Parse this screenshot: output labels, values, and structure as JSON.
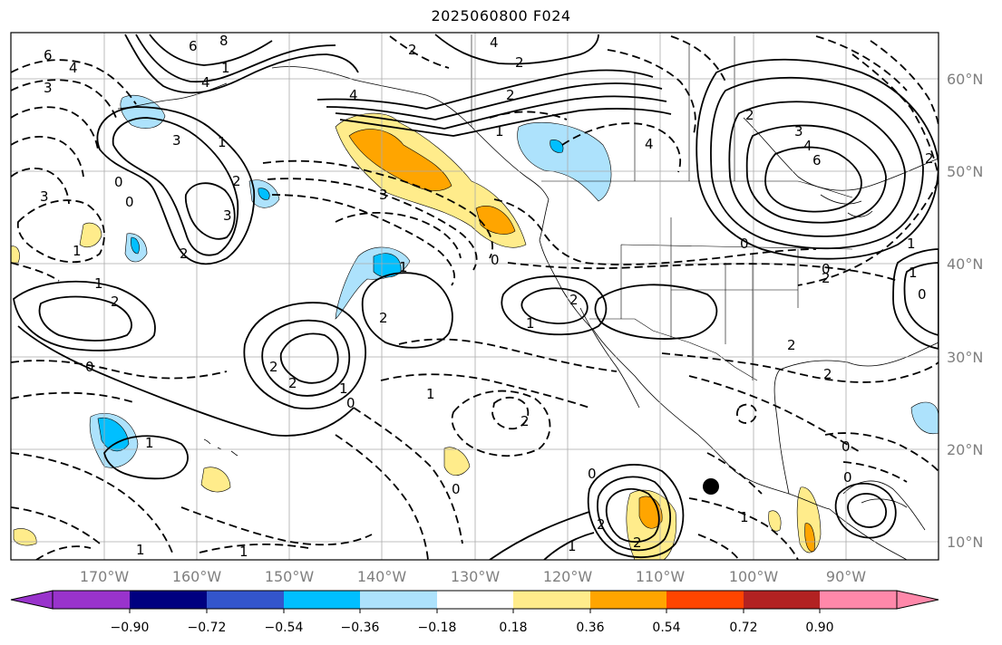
{
  "title": "2025060800 F024",
  "map": {
    "lon_range": [
      -180,
      -80
    ],
    "lat_range": [
      8,
      65
    ],
    "grid": true,
    "lon_labels": [
      "170°W",
      "160°W",
      "150°W",
      "140°W",
      "130°W",
      "120°W",
      "110°W",
      "100°W",
      "90°W"
    ],
    "lat_labels": [
      "10°N",
      "20°N",
      "30°N",
      "40°N",
      "50°N",
      "60°N"
    ],
    "marker": {
      "lon": -104.0,
      "lat": 16.1,
      "color": "#000000"
    }
  },
  "colorbar": {
    "colors": [
      "#9933cc",
      "#000080",
      "#3355cc",
      "#00bfff",
      "#ade2fc",
      "#ffffff",
      "#ffec8b",
      "#ffa500",
      "#ff4500",
      "#b22222",
      "#ff88aa"
    ],
    "labels": [
      "−0.90",
      "−0.72",
      "−0.54",
      "−0.36",
      "−0.18",
      "0.18",
      "0.36",
      "0.54",
      "0.72",
      "0.90"
    ]
  },
  "contour_labels": [
    "6",
    "4",
    "8",
    "4",
    "2",
    "4",
    "2",
    "2",
    "3",
    "4",
    "2",
    "6",
    "3",
    "4",
    "1",
    "3",
    "2",
    "3",
    "3",
    "1",
    "2",
    "1",
    "1",
    "2",
    "1",
    "2",
    "0",
    "1",
    "0",
    "2",
    "2",
    "2",
    "1",
    "0",
    "2",
    "1",
    "2",
    "2",
    "0",
    "0",
    "1",
    "1",
    "1",
    "0",
    "0",
    "0",
    "1",
    "2",
    "2",
    "0",
    "0",
    "2",
    "1",
    "3",
    "4",
    "6",
    "0",
    "0",
    "1",
    "1",
    "1",
    "2"
  ],
  "icon_names": [
    "point-marker-icon",
    "colorbar-left-arrow-icon",
    "colorbar-right-arrow-icon"
  ]
}
